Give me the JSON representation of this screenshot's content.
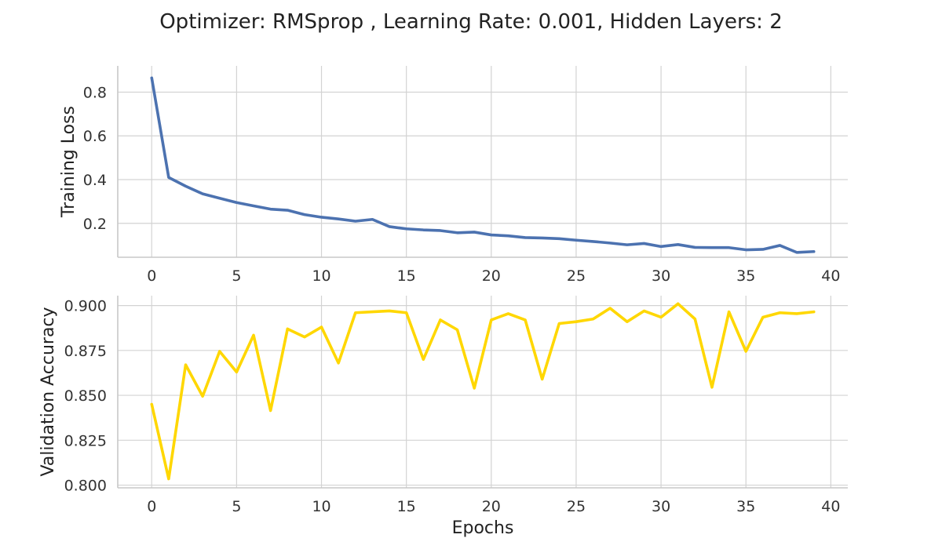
{
  "chart_title": "Optimizer: RMSprop , Learning Rate: 0.001, Hidden Layers: 2",
  "chart_data": [
    {
      "type": "line",
      "ylabel": "Training Loss",
      "xlabel": "",
      "xlim": [
        -2,
        41
      ],
      "ylim": [
        0.045,
        0.92
      ],
      "x_ticks": [
        "0",
        "5",
        "10",
        "15",
        "20",
        "25",
        "30",
        "35",
        "40"
      ],
      "y_ticks": [
        "0.2",
        "0.4",
        "0.6",
        "0.8"
      ],
      "grid": true,
      "line_color": "#4c72b0",
      "series": [
        {
          "x": [
            0,
            1,
            2,
            3,
            4,
            5,
            6,
            7,
            8,
            9,
            10,
            11,
            12,
            13,
            14,
            15,
            16,
            17,
            18,
            19,
            20,
            21,
            22,
            23,
            24,
            25,
            26,
            27,
            28,
            29,
            30,
            31,
            32,
            33,
            34,
            35,
            36,
            37,
            38,
            39
          ],
          "values": [
            0.865,
            0.41,
            0.37,
            0.335,
            0.315,
            0.295,
            0.28,
            0.265,
            0.26,
            0.24,
            0.228,
            0.22,
            0.21,
            0.218,
            0.185,
            0.175,
            0.17,
            0.167,
            0.157,
            0.16,
            0.147,
            0.143,
            0.135,
            0.133,
            0.13,
            0.123,
            0.117,
            0.11,
            0.102,
            0.108,
            0.094,
            0.103,
            0.09,
            0.089,
            0.089,
            0.079,
            0.081,
            0.099,
            0.067,
            0.071
          ]
        }
      ]
    },
    {
      "type": "line",
      "ylabel": "Validation Accuracy",
      "xlabel": "Epochs",
      "xlim": [
        -2,
        41
      ],
      "ylim": [
        0.7985,
        0.9055
      ],
      "x_ticks": [
        "0",
        "5",
        "10",
        "15",
        "20",
        "25",
        "30",
        "35",
        "40"
      ],
      "y_ticks": [
        "0.800",
        "0.825",
        "0.850",
        "0.875",
        "0.900"
      ],
      "grid": true,
      "line_color": "#ffd700",
      "series": [
        {
          "x": [
            0,
            1,
            2,
            3,
            4,
            5,
            6,
            7,
            8,
            9,
            10,
            11,
            12,
            13,
            14,
            15,
            16,
            17,
            18,
            19,
            20,
            21,
            22,
            23,
            24,
            25,
            26,
            27,
            28,
            29,
            30,
            31,
            32,
            33,
            34,
            35,
            36,
            37,
            38,
            39
          ],
          "values": [
            0.845,
            0.8035,
            0.867,
            0.8495,
            0.8745,
            0.863,
            0.8835,
            0.8415,
            0.887,
            0.8825,
            0.888,
            0.868,
            0.896,
            0.8965,
            0.897,
            0.896,
            0.87,
            0.892,
            0.8865,
            0.854,
            0.892,
            0.8955,
            0.892,
            0.859,
            0.89,
            0.891,
            0.8925,
            0.8985,
            0.891,
            0.897,
            0.8935,
            0.901,
            0.8925,
            0.8545,
            0.8965,
            0.8745,
            0.8935,
            0.896,
            0.8955,
            0.8965
          ]
        }
      ]
    }
  ]
}
